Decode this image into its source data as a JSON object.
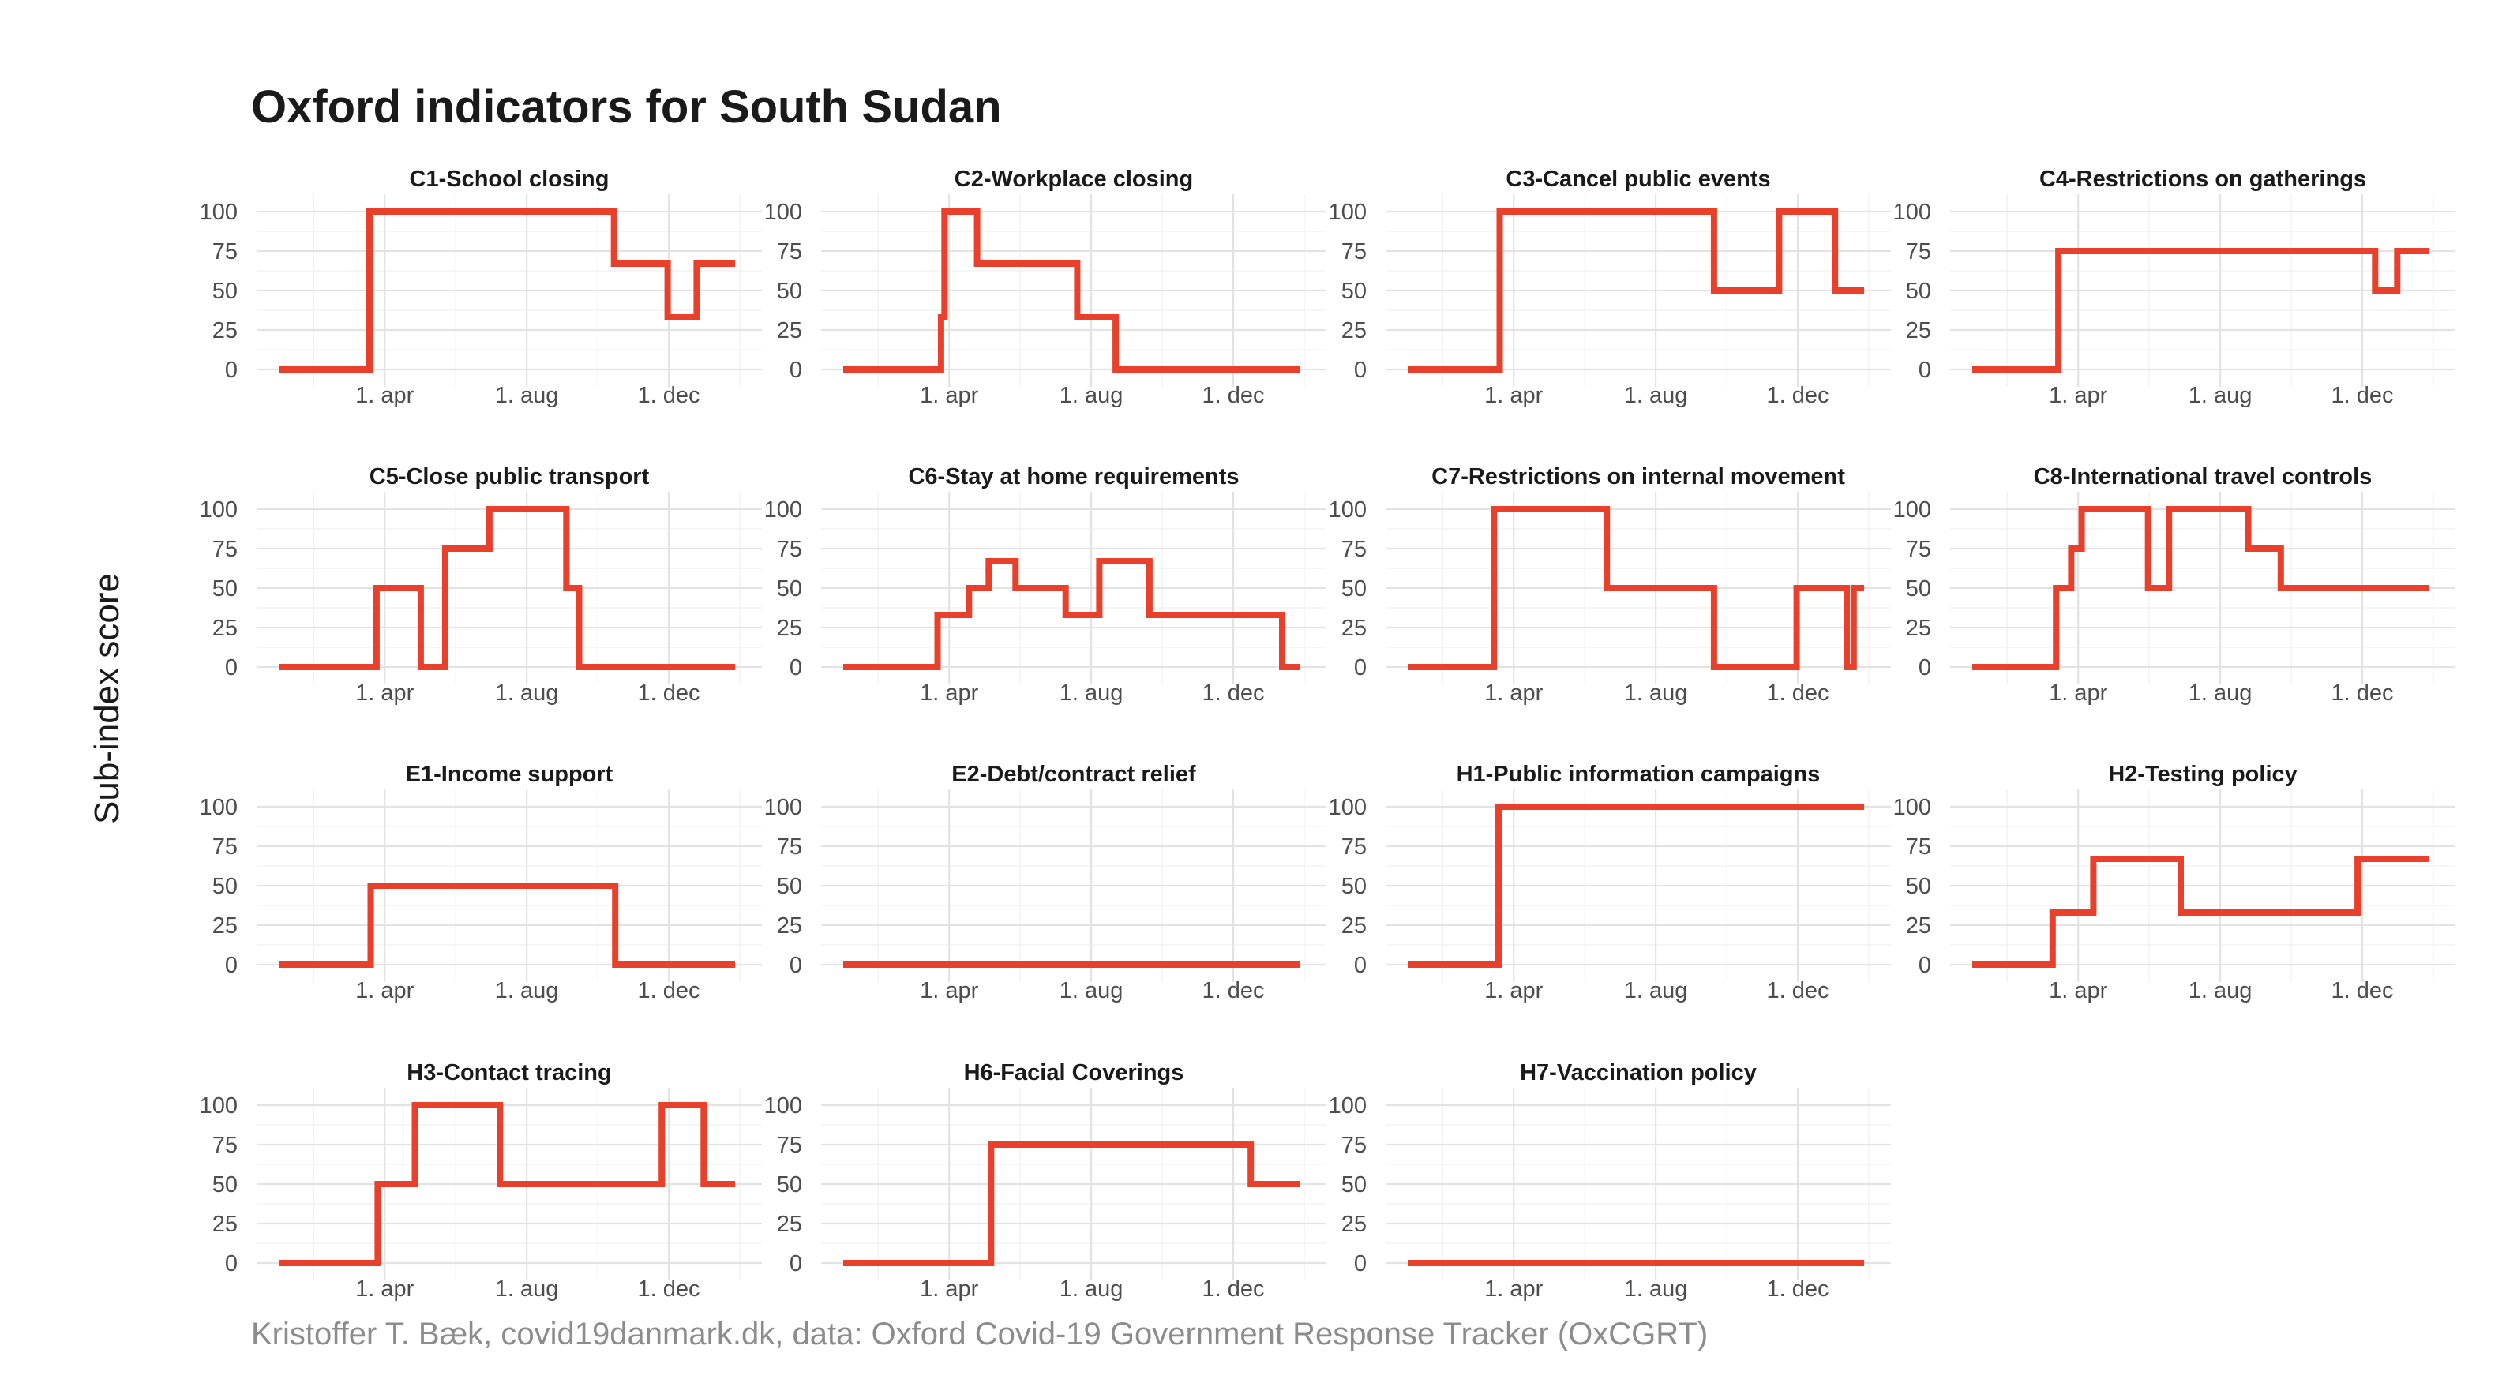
{
  "title": "Oxford indicators for South Sudan",
  "ylabel": "Sub-index score",
  "caption": "Kristoffer T. Bæk, covid19danmark.dk, data: Oxford Covid-19 Government Response Tracker (OxCGRT)",
  "colors": {
    "line": "#e8402a",
    "grid": "#e3e3e3",
    "caption": "#8c8c8c"
  },
  "chart_data": {
    "type": "line",
    "layout": "facet-grid 4 columns",
    "x_ticks": [
      "2020-04-01",
      "2020-08-01",
      "2020-12-01"
    ],
    "x_tick_labels": [
      "1. apr",
      "1. aug",
      "1. dec"
    ],
    "xlim": [
      "2020-01-01",
      "2021-01-31"
    ],
    "y_ticks": [
      0,
      25,
      50,
      75,
      100
    ],
    "ylim": [
      0,
      100
    ],
    "grid": true,
    "legend": "none",
    "panels": [
      {
        "title": "C1-School closing",
        "points": [
          [
            "2020-01-01",
            0
          ],
          [
            "2020-03-19",
            0
          ],
          [
            "2020-03-19",
            100
          ],
          [
            "2020-10-15",
            100
          ],
          [
            "2020-10-15",
            67
          ],
          [
            "2020-11-30",
            67
          ],
          [
            "2020-11-30",
            33
          ],
          [
            "2020-12-25",
            33
          ],
          [
            "2020-12-25",
            67
          ],
          [
            "2021-01-27",
            67
          ]
        ]
      },
      {
        "title": "C2-Workplace closing",
        "points": [
          [
            "2020-01-01",
            0
          ],
          [
            "2020-03-25",
            0
          ],
          [
            "2020-03-25",
            33
          ],
          [
            "2020-03-28",
            33
          ],
          [
            "2020-03-28",
            100
          ],
          [
            "2020-04-25",
            100
          ],
          [
            "2020-04-25",
            67
          ],
          [
            "2020-07-20",
            67
          ],
          [
            "2020-07-20",
            33
          ],
          [
            "2020-08-22",
            33
          ],
          [
            "2020-08-22",
            0
          ],
          [
            "2021-01-27",
            0
          ]
        ]
      },
      {
        "title": "C3-Cancel public events",
        "points": [
          [
            "2020-01-01",
            0
          ],
          [
            "2020-03-20",
            0
          ],
          [
            "2020-03-20",
            100
          ],
          [
            "2020-09-20",
            100
          ],
          [
            "2020-09-20",
            50
          ],
          [
            "2020-11-15",
            50
          ],
          [
            "2020-11-15",
            100
          ],
          [
            "2021-01-02",
            100
          ],
          [
            "2021-01-02",
            50
          ],
          [
            "2021-01-27",
            50
          ]
        ]
      },
      {
        "title": "C4-Restrictions on gatherings",
        "points": [
          [
            "2020-01-01",
            0
          ],
          [
            "2020-03-15",
            0
          ],
          [
            "2020-03-15",
            75
          ],
          [
            "2020-12-12",
            75
          ],
          [
            "2020-12-12",
            50
          ],
          [
            "2020-12-31",
            50
          ],
          [
            "2020-12-31",
            75
          ],
          [
            "2021-01-27",
            75
          ]
        ]
      },
      {
        "title": "C5-Close public transport",
        "points": [
          [
            "2020-01-01",
            0
          ],
          [
            "2020-03-25",
            0
          ],
          [
            "2020-03-25",
            50
          ],
          [
            "2020-05-02",
            50
          ],
          [
            "2020-05-02",
            0
          ],
          [
            "2020-05-23",
            0
          ],
          [
            "2020-05-23",
            75
          ],
          [
            "2020-06-30",
            75
          ],
          [
            "2020-06-30",
            100
          ],
          [
            "2020-09-04",
            100
          ],
          [
            "2020-09-04",
            50
          ],
          [
            "2020-09-15",
            50
          ],
          [
            "2020-09-15",
            0
          ],
          [
            "2021-01-27",
            0
          ]
        ]
      },
      {
        "title": "C6-Stay at home requirements",
        "points": [
          [
            "2020-01-01",
            0
          ],
          [
            "2020-03-22",
            0
          ],
          [
            "2020-03-22",
            33
          ],
          [
            "2020-04-18",
            33
          ],
          [
            "2020-04-18",
            50
          ],
          [
            "2020-05-05",
            50
          ],
          [
            "2020-05-05",
            67
          ],
          [
            "2020-05-28",
            67
          ],
          [
            "2020-05-28",
            50
          ],
          [
            "2020-07-10",
            50
          ],
          [
            "2020-07-10",
            33
          ],
          [
            "2020-08-08",
            33
          ],
          [
            "2020-08-08",
            67
          ],
          [
            "2020-09-20",
            67
          ],
          [
            "2020-09-20",
            33
          ],
          [
            "2021-01-12",
            33
          ],
          [
            "2021-01-12",
            0
          ],
          [
            "2021-01-27",
            0
          ]
        ]
      },
      {
        "title": "C7-Restrictions on internal movement",
        "points": [
          [
            "2020-01-01",
            0
          ],
          [
            "2020-03-15",
            0
          ],
          [
            "2020-03-15",
            100
          ],
          [
            "2020-06-20",
            100
          ],
          [
            "2020-06-20",
            50
          ],
          [
            "2020-09-20",
            50
          ],
          [
            "2020-09-20",
            0
          ],
          [
            "2020-11-30",
            0
          ],
          [
            "2020-11-30",
            50
          ],
          [
            "2021-01-12",
            50
          ],
          [
            "2021-01-12",
            0
          ],
          [
            "2021-01-18",
            0
          ],
          [
            "2021-01-18",
            50
          ],
          [
            "2021-01-27",
            50
          ]
        ]
      },
      {
        "title": "C8-International travel controls",
        "points": [
          [
            "2020-01-01",
            0
          ],
          [
            "2020-03-13",
            0
          ],
          [
            "2020-03-13",
            50
          ],
          [
            "2020-03-26",
            50
          ],
          [
            "2020-03-26",
            75
          ],
          [
            "2020-04-04",
            75
          ],
          [
            "2020-04-04",
            100
          ],
          [
            "2020-05-31",
            100
          ],
          [
            "2020-05-31",
            50
          ],
          [
            "2020-06-18",
            50
          ],
          [
            "2020-06-18",
            100
          ],
          [
            "2020-08-25",
            100
          ],
          [
            "2020-08-25",
            75
          ],
          [
            "2020-09-22",
            75
          ],
          [
            "2020-09-22",
            50
          ],
          [
            "2021-01-27",
            50
          ]
        ]
      },
      {
        "title": "E1-Income support",
        "points": [
          [
            "2020-01-01",
            0
          ],
          [
            "2020-03-20",
            0
          ],
          [
            "2020-03-20",
            50
          ],
          [
            "2020-10-16",
            50
          ],
          [
            "2020-10-16",
            0
          ],
          [
            "2021-01-27",
            0
          ]
        ]
      },
      {
        "title": "E2-Debt/contract relief",
        "points": [
          [
            "2020-01-01",
            0
          ],
          [
            "2021-01-27",
            0
          ]
        ]
      },
      {
        "title": "H1-Public information campaigns",
        "points": [
          [
            "2020-01-01",
            0
          ],
          [
            "2020-03-19",
            0
          ],
          [
            "2020-03-19",
            100
          ],
          [
            "2021-01-27",
            100
          ]
        ]
      },
      {
        "title": "H2-Testing policy",
        "points": [
          [
            "2020-01-01",
            0
          ],
          [
            "2020-03-10",
            0
          ],
          [
            "2020-03-10",
            33
          ],
          [
            "2020-04-14",
            33
          ],
          [
            "2020-04-14",
            67
          ],
          [
            "2020-06-28",
            67
          ],
          [
            "2020-06-28",
            33
          ],
          [
            "2020-11-27",
            33
          ],
          [
            "2020-11-27",
            67
          ],
          [
            "2021-01-27",
            67
          ]
        ]
      },
      {
        "title": "H3-Contact tracing",
        "points": [
          [
            "2020-01-01",
            0
          ],
          [
            "2020-03-26",
            0
          ],
          [
            "2020-03-26",
            50
          ],
          [
            "2020-04-27",
            50
          ],
          [
            "2020-04-27",
            100
          ],
          [
            "2020-07-09",
            100
          ],
          [
            "2020-07-09",
            50
          ],
          [
            "2020-11-25",
            50
          ],
          [
            "2020-11-25",
            100
          ],
          [
            "2020-12-31",
            100
          ],
          [
            "2020-12-31",
            50
          ],
          [
            "2021-01-27",
            50
          ]
        ]
      },
      {
        "title": "H6-Facial Coverings",
        "points": [
          [
            "2020-01-01",
            0
          ],
          [
            "2020-05-07",
            0
          ],
          [
            "2020-05-07",
            75
          ],
          [
            "2020-12-16",
            75
          ],
          [
            "2020-12-16",
            50
          ],
          [
            "2021-01-27",
            50
          ]
        ]
      },
      {
        "title": "H7-Vaccination policy",
        "points": [
          [
            "2020-01-01",
            0
          ],
          [
            "2021-01-27",
            0
          ]
        ]
      }
    ]
  }
}
